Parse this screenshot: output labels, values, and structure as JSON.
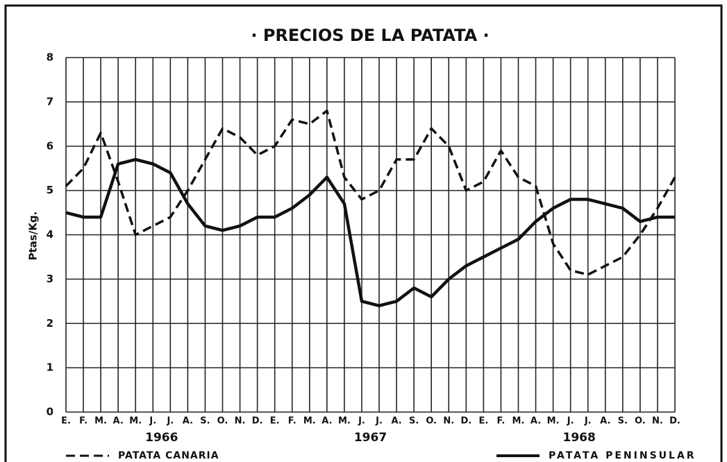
{
  "chart_data": {
    "type": "line",
    "title": "· PRECIOS DE LA PATATA ·",
    "y_label": "Ptas/Kg.",
    "categories": [
      "E.",
      "F.",
      "M.",
      "A.",
      "M.",
      "J.",
      "J.",
      "A.",
      "S.",
      "O.",
      "N.",
      "D.",
      "E.",
      "F.",
      "M.",
      "A.",
      "M.",
      "J.",
      "J.",
      "A.",
      "S.",
      "O.",
      "N.",
      "D.",
      "E.",
      "F.",
      "M.",
      "A.",
      "M.",
      "J.",
      "J.",
      "A.",
      "S.",
      "O.",
      "N.",
      "D."
    ],
    "year_labels": [
      "1966",
      "1967",
      "1968"
    ],
    "ylim": [
      0,
      8
    ],
    "yticks": [
      0,
      1,
      2,
      3,
      4,
      5,
      6,
      7,
      8
    ],
    "grid": true,
    "series": [
      {
        "name": "PATATA CANARIA",
        "color": "#111111",
        "dashed": true,
        "values": [
          5.1,
          5.5,
          6.3,
          5.2,
          4.0,
          4.2,
          4.4,
          5.0,
          5.7,
          6.4,
          6.2,
          5.8,
          6.0,
          6.6,
          6.5,
          6.8,
          5.3,
          4.8,
          5.0,
          5.7,
          5.7,
          6.4,
          6.0,
          5.0,
          5.2,
          5.9,
          5.3,
          5.1,
          3.8,
          3.2,
          3.1,
          3.3,
          3.5,
          4.0,
          4.6,
          5.3
        ]
      },
      {
        "name": "PATATA PENINSULAR",
        "color": "#111111",
        "dashed": false,
        "values": [
          4.5,
          4.4,
          4.4,
          5.6,
          5.7,
          5.6,
          5.4,
          4.7,
          4.2,
          4.1,
          4.2,
          4.4,
          4.4,
          4.6,
          4.9,
          5.3,
          4.7,
          2.5,
          2.4,
          2.5,
          2.8,
          2.6,
          3.0,
          3.3,
          3.5,
          3.7,
          3.9,
          4.3,
          4.6,
          4.8,
          4.8,
          4.7,
          4.6,
          4.3,
          4.4,
          4.4
        ]
      }
    ]
  }
}
